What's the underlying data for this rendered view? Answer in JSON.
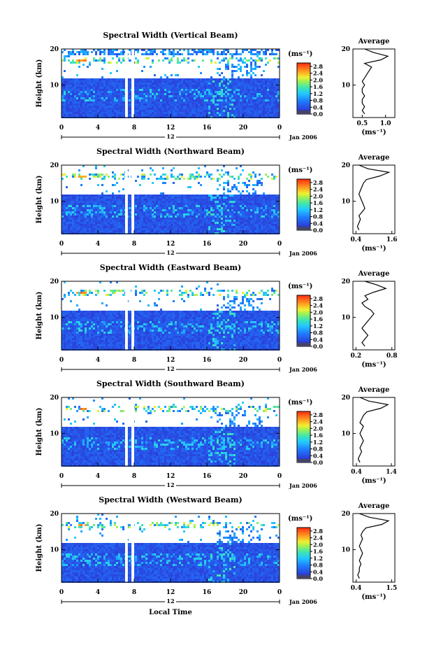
{
  "figure": {
    "xlabel": "Local Time",
    "ylabel": "Height (km)",
    "date_label": "Jan 2006",
    "unit_label": "(ms⁻¹)",
    "average_title": "Average",
    "average_unit": "(ms⁻¹)",
    "colorbar_ticks": [
      "0.0",
      "0.4",
      "0.8",
      "1.2",
      "1.6",
      "2.0",
      "2.4",
      "2.8"
    ],
    "x_ticks": [
      "0",
      "4",
      "8",
      "12",
      "16",
      "20",
      "0"
    ],
    "day_marker": "12",
    "y_ticks": [
      "20",
      "10"
    ]
  },
  "chart_data": [
    {
      "type": "heatmap",
      "title": "Spectral Width (Vertical Beam)",
      "xlabel": "Local Time",
      "ylabel": "Height (km)",
      "xlim": [
        0,
        24
      ],
      "ylim": [
        1,
        20
      ],
      "clim": [
        0,
        3.0
      ],
      "gaps_hours": [
        [
          7.0,
          7.3
        ],
        [
          7.7,
          8.0
        ]
      ],
      "profile": {
        "xticks": [
          "0.5",
          "1.0"
        ],
        "xlim": [
          0.3,
          1.2
        ],
        "height": [
          2,
          3,
          4,
          5,
          6,
          7,
          8,
          9,
          10,
          11,
          12,
          13,
          14,
          15,
          16,
          17,
          18,
          19,
          20
        ],
        "values": [
          0.55,
          0.5,
          0.55,
          0.5,
          0.5,
          0.55,
          0.5,
          0.5,
          0.55,
          0.5,
          0.55,
          0.6,
          0.65,
          0.7,
          0.55,
          0.9,
          1.05,
          0.75,
          0.55
        ]
      }
    },
    {
      "type": "heatmap",
      "title": "Spectral Width (Northward Beam)",
      "xlabel": "Local Time",
      "ylabel": "Height (km)",
      "xlim": [
        0,
        24
      ],
      "ylim": [
        1,
        20
      ],
      "clim": [
        0,
        3.0
      ],
      "gaps_hours": [
        [
          7.0,
          7.3
        ],
        [
          7.7,
          8.0
        ]
      ],
      "profile": {
        "xticks": [
          "0.4",
          "1.6"
        ],
        "xlim": [
          0.3,
          1.7
        ],
        "height": [
          2,
          3,
          4,
          5,
          6,
          7,
          8,
          9,
          10,
          11,
          12,
          13,
          14,
          15,
          16,
          17,
          18,
          19,
          20
        ],
        "values": [
          0.5,
          0.45,
          0.5,
          0.55,
          0.5,
          0.6,
          0.7,
          0.65,
          0.6,
          0.55,
          0.5,
          0.55,
          0.6,
          0.65,
          0.75,
          1.2,
          1.5,
          0.8,
          0.5
        ]
      }
    },
    {
      "type": "heatmap",
      "title": "Spectral Width (Eastward Beam)",
      "xlabel": "Local Time",
      "ylabel": "Height (km)",
      "xlim": [
        0,
        24
      ],
      "ylim": [
        1,
        20
      ],
      "clim": [
        0,
        3.0
      ],
      "gaps_hours": [
        [
          7.0,
          7.3
        ],
        [
          7.7,
          8.0
        ]
      ],
      "profile": {
        "xticks": [
          "0.2",
          "0.8"
        ],
        "xlim": [
          0.15,
          0.85
        ],
        "height": [
          2,
          3,
          4,
          5,
          6,
          7,
          8,
          9,
          10,
          11,
          12,
          13,
          14,
          15,
          16,
          17,
          18,
          19,
          20
        ],
        "values": [
          0.35,
          0.3,
          0.35,
          0.4,
          0.35,
          0.3,
          0.35,
          0.4,
          0.45,
          0.5,
          0.45,
          0.35,
          0.3,
          0.4,
          0.35,
          0.5,
          0.7,
          0.55,
          0.35
        ]
      }
    },
    {
      "type": "heatmap",
      "title": "Spectral Width (Southward Beam)",
      "xlabel": "Local Time",
      "ylabel": "Height (km)",
      "xlim": [
        0,
        24
      ],
      "ylim": [
        1,
        20
      ],
      "clim": [
        0,
        3.0
      ],
      "gaps_hours": [
        [
          7.0,
          7.3
        ],
        [
          7.7,
          8.0
        ]
      ],
      "profile": {
        "xticks": [
          "0.4",
          "1.4"
        ],
        "xlim": [
          0.3,
          1.5
        ],
        "height": [
          2,
          3,
          4,
          5,
          6,
          7,
          8,
          9,
          10,
          11,
          12,
          13,
          14,
          15,
          16,
          17,
          18,
          19,
          20
        ],
        "values": [
          0.5,
          0.45,
          0.5,
          0.55,
          0.5,
          0.55,
          0.6,
          0.55,
          0.5,
          0.55,
          0.6,
          0.5,
          0.55,
          0.6,
          0.7,
          1.1,
          1.3,
          0.75,
          0.5
        ]
      }
    },
    {
      "type": "heatmap",
      "title": "Spectral Width (Westward Beam)",
      "xlabel": "Local Time",
      "ylabel": "Height (km)",
      "xlim": [
        0,
        24
      ],
      "ylim": [
        1,
        20
      ],
      "clim": [
        0,
        3.0
      ],
      "gaps_hours": [
        [
          7.0,
          7.3
        ],
        [
          7.7,
          8.0
        ]
      ],
      "profile": {
        "xticks": [
          "0.4",
          "1.5"
        ],
        "xlim": [
          0.3,
          1.6
        ],
        "height": [
          2,
          3,
          4,
          5,
          6,
          7,
          8,
          9,
          10,
          11,
          12,
          13,
          14,
          15,
          16,
          17,
          18,
          19,
          20
        ],
        "values": [
          0.5,
          0.45,
          0.5,
          0.5,
          0.55,
          0.5,
          0.55,
          0.6,
          0.55,
          0.5,
          0.55,
          0.6,
          0.55,
          0.6,
          0.7,
          1.2,
          1.4,
          0.8,
          0.5
        ]
      }
    }
  ]
}
